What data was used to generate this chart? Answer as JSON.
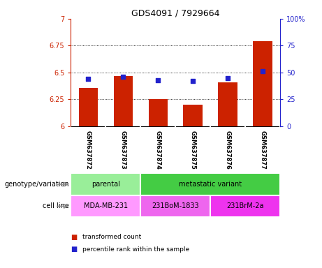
{
  "title": "GDS4091 / 7929664",
  "samples": [
    "GSM637872",
    "GSM637873",
    "GSM637874",
    "GSM637875",
    "GSM637876",
    "GSM637877"
  ],
  "transformed_count": [
    6.36,
    6.47,
    6.25,
    6.2,
    6.41,
    6.79
  ],
  "percentile_rank": [
    44,
    46,
    43,
    42,
    45,
    51
  ],
  "ylim_left": [
    6.0,
    7.0
  ],
  "ylim_right": [
    0,
    100
  ],
  "yticks_left": [
    6.0,
    6.25,
    6.5,
    6.75,
    7.0
  ],
  "ytick_labels_left": [
    "6",
    "6.25",
    "6.5",
    "6.75",
    "7"
  ],
  "yticks_right": [
    0,
    25,
    50,
    75,
    100
  ],
  "ytick_labels_right": [
    "0",
    "25",
    "50",
    "75",
    "100%"
  ],
  "hlines": [
    6.25,
    6.5,
    6.75
  ],
  "bar_color": "#cc2200",
  "dot_color": "#2222cc",
  "bar_width": 0.55,
  "chart_bg": "#ffffff",
  "label_bg": "#cccccc",
  "genotype_groups": [
    {
      "label": "parental",
      "start": 0,
      "end": 2,
      "color": "#99ee99"
    },
    {
      "label": "metastatic variant",
      "start": 2,
      "end": 6,
      "color": "#44cc44"
    }
  ],
  "cell_line_groups": [
    {
      "label": "MDA-MB-231",
      "start": 0,
      "end": 2,
      "color": "#ff99ff"
    },
    {
      "label": "231BoM-1833",
      "start": 2,
      "end": 4,
      "color": "#ee66ee"
    },
    {
      "label": "231BrM-2a",
      "start": 4,
      "end": 6,
      "color": "#ee33ee"
    }
  ],
  "legend_items": [
    {
      "label": "transformed count",
      "color": "#cc2200"
    },
    {
      "label": "percentile rank within the sample",
      "color": "#2222cc"
    }
  ],
  "left_axis_color": "#cc2200",
  "right_axis_color": "#2222cc",
  "title_fontsize": 9,
  "tick_fontsize": 7,
  "label_fontsize": 7,
  "genotype_label": "genotype/variation",
  "cellline_label": "cell line"
}
